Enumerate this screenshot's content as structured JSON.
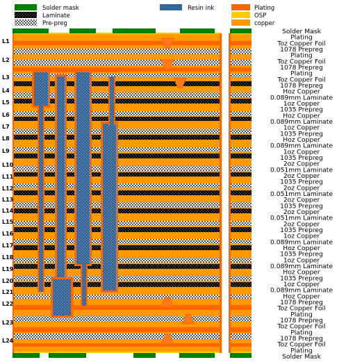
{
  "legend": [
    {
      "label": "Solder mask",
      "swatch": "solder-mask"
    },
    {
      "label": "Laminate",
      "swatch": "laminate"
    },
    {
      "label": "Pre-preg",
      "swatch": "prepreg"
    },
    {
      "label": "Resin ink",
      "swatch": "resin"
    },
    {
      "label": "Plating",
      "swatch": "plating"
    },
    {
      "label": "OSP",
      "swatch": "osp"
    },
    {
      "label": "copper",
      "swatch": "copper"
    }
  ],
  "layer_tags": [
    "L1",
    "L2",
    "L3",
    "L4",
    "L5",
    "L6",
    "L7",
    "L8",
    "L9",
    "L10",
    "L11",
    "L12",
    "L13",
    "L14",
    "L15",
    "L16",
    "L17",
    "L18",
    "L19",
    "L20",
    "L21",
    "L22",
    "L23",
    "L24"
  ],
  "stack_labels": [
    "Solder Mask",
    "Plating",
    "Toz Copper Foil",
    "1078 Prepreg",
    "Plating",
    "Toz Copper Foil",
    "1078 Prepreg",
    "Plating",
    "Toz Copper Foil",
    "1078 Prepreg",
    "Hoz Copper",
    "0.089mm  Laminate",
    "1oz Copper",
    "1035 Prepreg",
    "Hoz Copper",
    "0.089mm Laminate",
    "1oz Copper",
    "1035 Prepreg",
    "Hoz Copper",
    "0.089mm Laminate",
    "1oz Copper",
    "1035 Prepreg",
    "2oz Copper",
    "0.051mm Laminate",
    "2oz Copper",
    "1035 Prepreg",
    "2oz Copper",
    "0.051mm Laminate",
    "2oz Copper",
    "1035  Prepreg",
    "2oz Copper",
    "0.051mm Laminate",
    "2oz Copper",
    "1035 Prepreg",
    "1oz Copper",
    "0.089mm Laminate",
    "Hoz Copper",
    "1035 Prepreg",
    "1oz Copper",
    "0.089mm Laminate",
    "Hoz Copper",
    "1035 Prepreg",
    "1oz Copper",
    "0.089mm Laminate",
    "Hoz Copper",
    "1078 Prepreg",
    "Toz Copper Foil",
    "Plating",
    "1078 Prepreg",
    "Toz Copper Foil",
    "Plating",
    "1078 Prepreg",
    "Toz Copper Foil",
    "Plating",
    "Solder Mask"
  ],
  "colors": {
    "copper": "#FF9900",
    "plating": "#FF6600",
    "osp": "#FFCC00",
    "solder_mask": "#008000",
    "resin": "#336699",
    "laminate_dark": "#000000",
    "prepreg_dot": "#555555"
  }
}
